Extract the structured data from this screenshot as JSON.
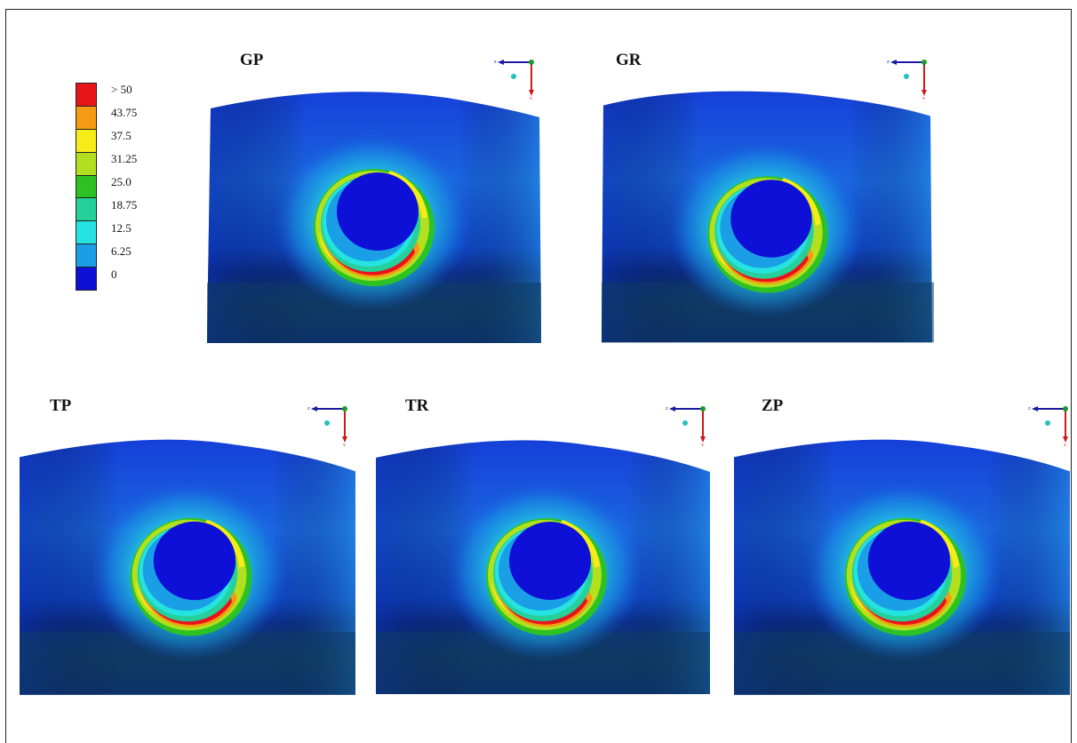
{
  "legend": {
    "labels": [
      "> 50",
      "43.75",
      "37.5",
      "31.25",
      "25.0",
      "18.75",
      "12.5",
      "6.25",
      "0"
    ],
    "colors": [
      "#e8141a",
      "#f59a12",
      "#f6ec17",
      "#b2e01e",
      "#2dc224",
      "#26d09a",
      "#25e3e0",
      "#1a9ee6",
      "#0e10d8"
    ]
  },
  "panels": [
    {
      "title": "GP"
    },
    {
      "title": "GR"
    },
    {
      "title": "TP"
    },
    {
      "title": "TR"
    },
    {
      "title": "ZP"
    }
  ],
  "axes": {
    "horizontal_label": "z",
    "vertical_label": "y"
  }
}
